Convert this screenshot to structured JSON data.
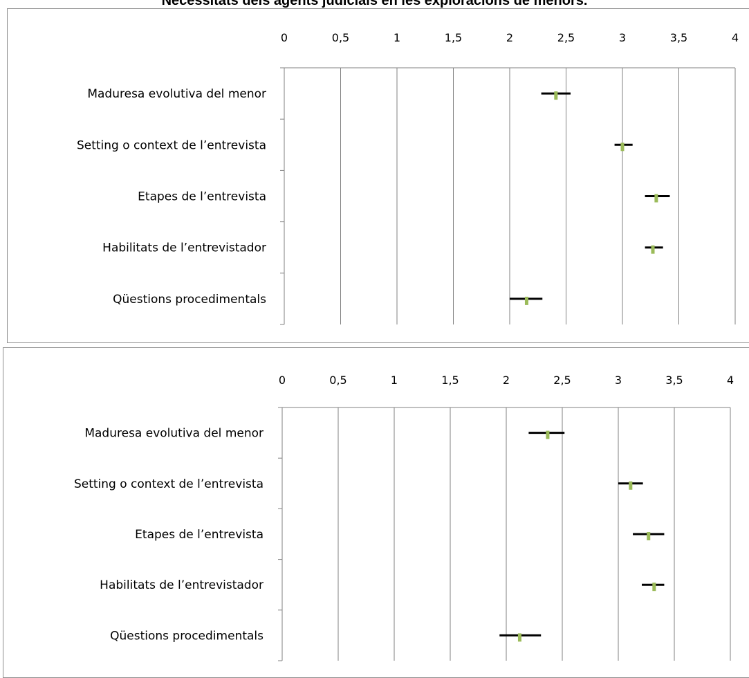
{
  "header": {
    "title": "Necessitats dels agents judicials en les exploracions de menors."
  },
  "chart_data": [
    {
      "type": "error-bar",
      "title": "",
      "xlabel": "",
      "ylabel": "",
      "xlim": [
        0,
        4
      ],
      "x_ticks": [
        "0",
        "0,5",
        "1",
        "1,5",
        "2",
        "2,5",
        "3",
        "3,5",
        "4"
      ],
      "x_tick_values": [
        0,
        0.5,
        1,
        1.5,
        2,
        2.5,
        3,
        3.5,
        4
      ],
      "grid": true,
      "axis_position": "top",
      "categories": [
        "Maduresa evolutiva del menor",
        "Setting o context de l’entrevista",
        "Etapes de l’entrevista",
        "Habilitats de l’entrevistador",
        "Qüestions procedimentals"
      ],
      "means": [
        2.41,
        3.0,
        3.3,
        3.27,
        2.15
      ],
      "lower": [
        2.28,
        2.93,
        3.2,
        3.2,
        2.0
      ],
      "upper": [
        2.54,
        3.09,
        3.42,
        3.36,
        2.29
      ],
      "colors": {
        "mean_marker": "#9bbb59",
        "interval": "#000000",
        "grid": "#808080"
      }
    },
    {
      "type": "error-bar",
      "title": "",
      "xlabel": "",
      "ylabel": "",
      "xlim": [
        0,
        4
      ],
      "x_ticks": [
        "0",
        "0,5",
        "1",
        "1,5",
        "2",
        "2,5",
        "3",
        "3,5",
        "4"
      ],
      "x_tick_values": [
        0,
        0.5,
        1,
        1.5,
        2,
        2.5,
        3,
        3.5,
        4
      ],
      "grid": true,
      "axis_position": "top",
      "categories": [
        "Maduresa evolutiva del menor",
        "Setting o context de l’entrevista",
        "Etapes de l’entrevista",
        "Habilitats de l’entrevistador",
        "Qüestions procedimentals"
      ],
      "means": [
        2.37,
        3.11,
        3.27,
        3.32,
        2.12
      ],
      "lower": [
        2.2,
        3.0,
        3.13,
        3.21,
        1.94
      ],
      "upper": [
        2.52,
        3.22,
        3.41,
        3.41,
        2.31
      ],
      "colors": {
        "mean_marker": "#9bbb59",
        "interval": "#000000",
        "grid": "#808080"
      }
    }
  ]
}
